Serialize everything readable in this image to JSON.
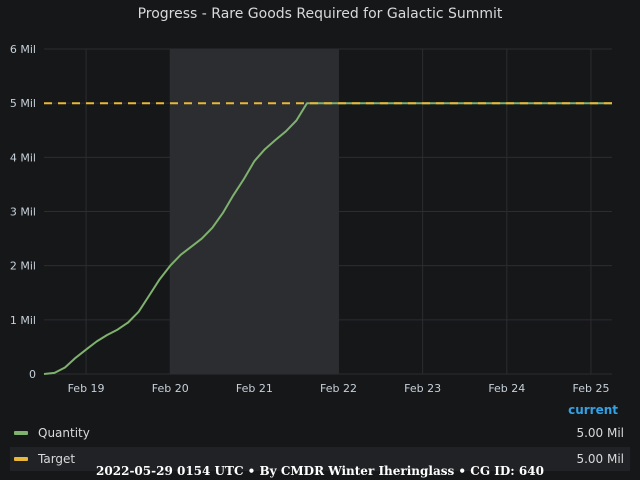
{
  "title": "Progress - Rare Goods Required for Galactic Summit",
  "footer": "2022-05-29 0154 UTC • By CMDR Winter Iheringlass • CG ID: 640",
  "legend": {
    "header": "current",
    "items": [
      {
        "name": "Quantity",
        "value": "5.00 Mil",
        "color": "#7eb26d"
      },
      {
        "name": "Target",
        "value": "5.00 Mil",
        "color": "#eab839"
      }
    ]
  },
  "chart_data": {
    "type": "line",
    "title": "Progress - Rare Goods Required for Galactic Summit",
    "ylim": [
      0,
      6
    ],
    "yticks": [
      "0",
      "1 Mil",
      "2 Mil",
      "3 Mil",
      "4 Mil",
      "5 Mil",
      "6 Mil"
    ],
    "xlim": [
      "2022-02-18T12:00",
      "2022-02-25T06:00"
    ],
    "xticks": [
      "Feb 19",
      "Feb 20",
      "Feb 21",
      "Feb 22",
      "Feb 23",
      "Feb 24",
      "Feb 25"
    ],
    "grid": true,
    "highlight_region": [
      "2022-02-20T00:00",
      "2022-02-22T00:00"
    ],
    "series": [
      {
        "name": "Quantity",
        "color": "#7eb26d",
        "style": "solid",
        "points": [
          [
            "2022-02-18T12:00",
            0.0
          ],
          [
            "2022-02-18T15:00",
            0.02
          ],
          [
            "2022-02-18T18:00",
            0.12
          ],
          [
            "2022-02-18T21:00",
            0.3
          ],
          [
            "2022-02-19T00:00",
            0.45
          ],
          [
            "2022-02-19T03:00",
            0.6
          ],
          [
            "2022-02-19T06:00",
            0.72
          ],
          [
            "2022-02-19T09:00",
            0.82
          ],
          [
            "2022-02-19T12:00",
            0.95
          ],
          [
            "2022-02-19T15:00",
            1.15
          ],
          [
            "2022-02-19T18:00",
            1.45
          ],
          [
            "2022-02-19T21:00",
            1.75
          ],
          [
            "2022-02-20T00:00",
            2.0
          ],
          [
            "2022-02-20T03:00",
            2.2
          ],
          [
            "2022-02-20T06:00",
            2.35
          ],
          [
            "2022-02-20T09:00",
            2.5
          ],
          [
            "2022-02-20T12:00",
            2.7
          ],
          [
            "2022-02-20T15:00",
            2.97
          ],
          [
            "2022-02-20T18:00",
            3.3
          ],
          [
            "2022-02-20T21:00",
            3.6
          ],
          [
            "2022-02-21T00:00",
            3.93
          ],
          [
            "2022-02-21T03:00",
            4.15
          ],
          [
            "2022-02-21T06:00",
            4.32
          ],
          [
            "2022-02-21T09:00",
            4.48
          ],
          [
            "2022-02-21T12:00",
            4.68
          ],
          [
            "2022-02-21T15:00",
            5.0
          ],
          [
            "2022-02-22T00:00",
            5.0
          ],
          [
            "2022-02-23T00:00",
            5.0
          ],
          [
            "2022-02-24T00:00",
            5.0
          ],
          [
            "2022-02-25T00:00",
            5.0
          ],
          [
            "2022-02-25T06:00",
            5.0
          ]
        ]
      },
      {
        "name": "Target",
        "color": "#eab839",
        "style": "dashed",
        "points": [
          [
            "2022-02-18T12:00",
            5.0
          ],
          [
            "2022-02-25T06:00",
            5.0
          ]
        ]
      }
    ]
  }
}
